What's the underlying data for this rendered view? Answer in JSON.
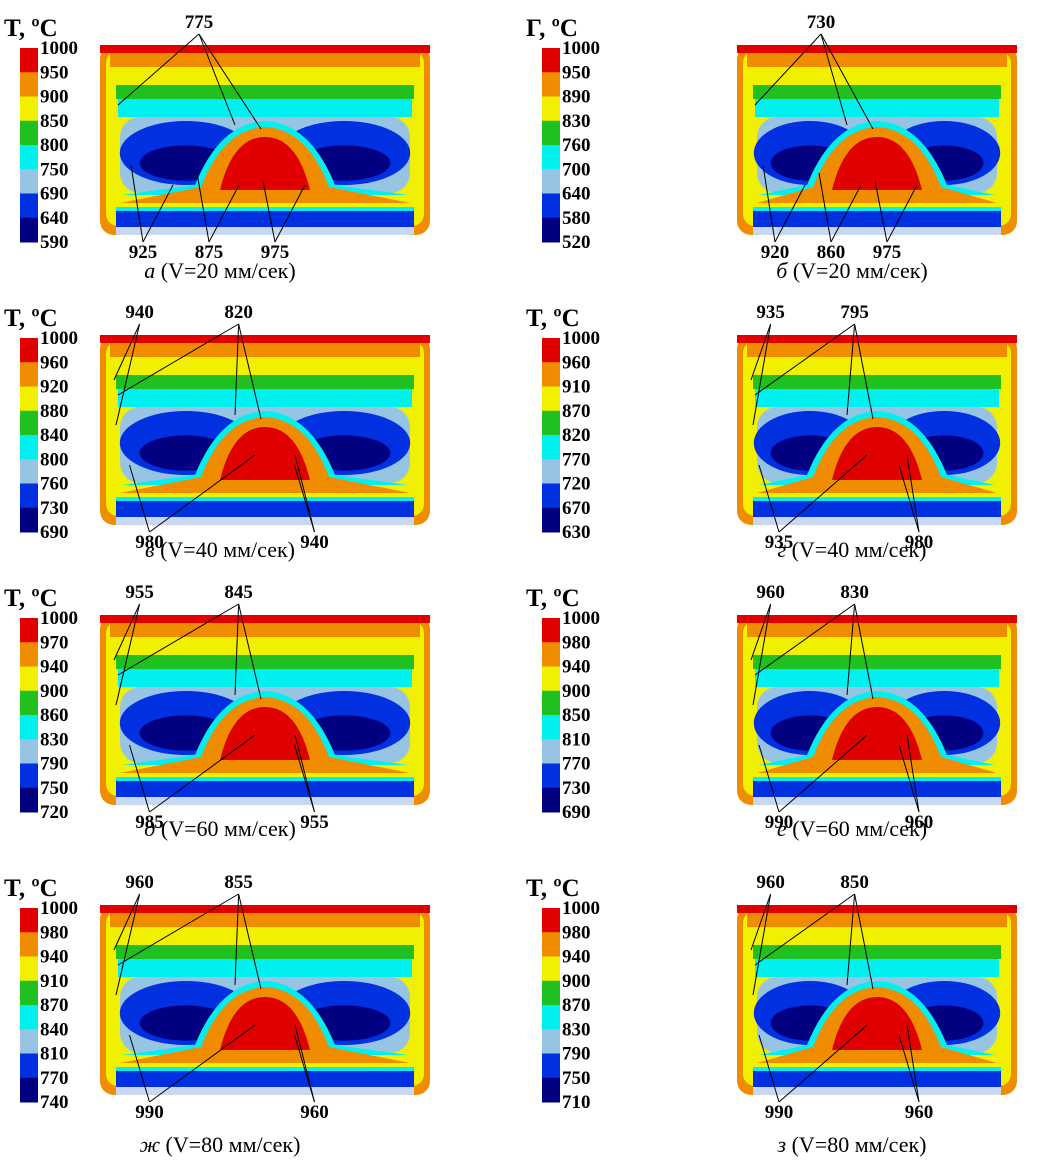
{
  "figure": {
    "panels": [
      {
        "legend_title": "T, ºC",
        "legend": [
          1000,
          950,
          900,
          850,
          800,
          750,
          690,
          640,
          590
        ],
        "top_labels": [
          775
        ],
        "bottom_labels": [
          925,
          875,
          975
        ],
        "caption_letter": "а",
        "caption_text": "(V=20 мм/сек)"
      },
      {
        "legend_title": "Г, ºC",
        "legend": [
          1000,
          950,
          890,
          830,
          760,
          700,
          640,
          580,
          520
        ],
        "top_labels": [
          730
        ],
        "bottom_labels": [
          920,
          860,
          975
        ],
        "caption_letter": "б",
        "caption_text": "(V=20 мм/сек)"
      },
      {
        "legend_title": "T, ºC",
        "legend": [
          1000,
          960,
          920,
          880,
          840,
          800,
          760,
          730,
          690
        ],
        "top_labels": [
          940,
          820
        ],
        "bottom_labels": [
          980,
          940
        ],
        "caption_letter": "в",
        "caption_text": "(V=40 мм/сек)"
      },
      {
        "legend_title": "T, ºC",
        "legend": [
          1000,
          960,
          910,
          870,
          820,
          770,
          720,
          670,
          630
        ],
        "top_labels": [
          935,
          795
        ],
        "bottom_labels": [
          935,
          980
        ],
        "caption_letter": "г",
        "caption_text": "(V=40 мм/сек)"
      },
      {
        "legend_title": "T, ºC",
        "legend": [
          1000,
          970,
          940,
          900,
          860,
          830,
          790,
          750,
          720
        ],
        "top_labels": [
          955,
          845
        ],
        "bottom_labels": [
          985,
          955
        ],
        "caption_letter": "д",
        "caption_text": "(V=60 мм/сек)"
      },
      {
        "legend_title": "T, ºC",
        "legend": [
          1000,
          980,
          940,
          900,
          850,
          810,
          770,
          730,
          690
        ],
        "top_labels": [
          960,
          830
        ],
        "bottom_labels": [
          990,
          960
        ],
        "caption_letter": "е",
        "caption_text": "(V=60 мм/сек)"
      },
      {
        "legend_title": "T, ºC",
        "legend": [
          1000,
          980,
          940,
          910,
          870,
          840,
          810,
          770,
          740
        ],
        "top_labels": [
          960,
          855
        ],
        "bottom_labels": [
          990,
          960
        ],
        "caption_letter": "ж",
        "caption_text": "(V=80 мм/сек)"
      },
      {
        "legend_title": "T, ºC",
        "legend": [
          1000,
          980,
          940,
          900,
          870,
          830,
          790,
          750,
          710
        ],
        "top_labels": [
          960,
          850
        ],
        "bottom_labels": [
          990,
          960
        ],
        "caption_letter": "з",
        "caption_text": "(V=80 мм/сек)"
      }
    ]
  }
}
